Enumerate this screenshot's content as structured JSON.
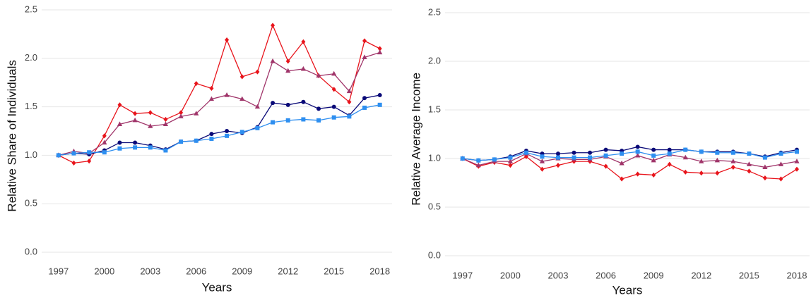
{
  "chart_data": [
    {
      "type": "line",
      "x_label": "Years",
      "y_label": "Relative Share of Individuals",
      "x": [
        1997,
        1998,
        1999,
        2000,
        2001,
        2002,
        2003,
        2004,
        2005,
        2006,
        2007,
        2008,
        2009,
        2010,
        2011,
        2012,
        2013,
        2014,
        2015,
        2016,
        2017,
        2018
      ],
      "xlim": [
        1995.9,
        2018.8
      ],
      "xticks": [
        1997,
        2000,
        2003,
        2006,
        2009,
        2012,
        2015,
        2018
      ],
      "ylim": [
        -0.15,
        2.55
      ],
      "yticks": [
        {
          "value": 0,
          "label": "0.0"
        },
        0.5,
        {
          "value": 1,
          "label": "1.0"
        },
        1.5,
        {
          "value": 2,
          "label": "2.0"
        },
        2.5
      ],
      "grid": true,
      "series": [
        {
          "color": "#e8141b",
          "marker": "diamond",
          "values": [
            1.0,
            0.92,
            0.94,
            1.2,
            1.52,
            1.43,
            1.44,
            1.37,
            1.44,
            1.74,
            1.69,
            2.19,
            1.81,
            1.86,
            2.34,
            1.97,
            2.17,
            1.82,
            1.68,
            1.55,
            2.18,
            2.1
          ]
        },
        {
          "color": "#a0356a",
          "marker": "triangle",
          "values": [
            1.0,
            1.04,
            1.02,
            1.13,
            1.32,
            1.36,
            1.3,
            1.32,
            1.4,
            1.43,
            1.58,
            1.62,
            1.58,
            1.5,
            1.97,
            1.87,
            1.89,
            1.82,
            1.84,
            1.66,
            2.01,
            2.06
          ]
        },
        {
          "color": "#0a0a78",
          "marker": "circle",
          "values": [
            1.0,
            1.02,
            1.01,
            1.05,
            1.13,
            1.13,
            1.1,
            1.06,
            1.14,
            1.15,
            1.22,
            1.25,
            1.23,
            1.29,
            1.54,
            1.52,
            1.55,
            1.48,
            1.5,
            1.41,
            1.59,
            1.62
          ]
        },
        {
          "color": "#2e8ff0",
          "marker": "square",
          "values": [
            1.0,
            1.02,
            1.03,
            1.03,
            1.07,
            1.08,
            1.08,
            1.05,
            1.14,
            1.15,
            1.17,
            1.2,
            1.24,
            1.28,
            1.34,
            1.36,
            1.37,
            1.36,
            1.39,
            1.4,
            1.49,
            1.52
          ]
        }
      ]
    },
    {
      "type": "line",
      "x_label": "Years",
      "y_label": "Relative Average Income",
      "x": [
        1997,
        1998,
        1999,
        2000,
        2001,
        2002,
        2003,
        2004,
        2005,
        2006,
        2007,
        2008,
        2009,
        2010,
        2011,
        2012,
        2013,
        2014,
        2015,
        2016,
        2017,
        2018
      ],
      "xlim": [
        1995.9,
        2018.8
      ],
      "xticks": [
        1997,
        2000,
        2003,
        2006,
        2009,
        2012,
        2015,
        2018
      ],
      "ylim": [
        -0.15,
        2.55
      ],
      "yticks": [
        {
          "value": 0,
          "label": "0.0"
        },
        0.5,
        {
          "value": 1,
          "label": "1.0"
        },
        1.5,
        {
          "value": 2,
          "label": "2.0"
        },
        2.5
      ],
      "grid": true,
      "series": [
        {
          "color": "#e8141b",
          "marker": "diamond",
          "values": [
            1.0,
            0.92,
            0.96,
            0.93,
            1.02,
            0.89,
            0.93,
            0.97,
            0.97,
            0.92,
            0.79,
            0.84,
            0.83,
            0.94,
            0.86,
            0.85,
            0.85,
            0.91,
            0.87,
            0.8,
            0.79,
            0.89
          ]
        },
        {
          "color": "#a0356a",
          "marker": "triangle",
          "values": [
            1.0,
            0.93,
            0.97,
            0.97,
            1.05,
            0.97,
            1.0,
            0.99,
            0.99,
            1.02,
            0.95,
            1.03,
            0.98,
            1.04,
            1.01,
            0.97,
            0.98,
            0.97,
            0.94,
            0.91,
            0.94,
            0.97
          ]
        },
        {
          "color": "#0a0a78",
          "marker": "circle",
          "values": [
            1.0,
            0.98,
            0.99,
            1.02,
            1.08,
            1.05,
            1.05,
            1.06,
            1.06,
            1.09,
            1.08,
            1.12,
            1.09,
            1.09,
            1.09,
            1.07,
            1.07,
            1.07,
            1.05,
            1.02,
            1.06,
            1.09
          ]
        },
        {
          "color": "#2e8ff0",
          "marker": "square",
          "values": [
            1.0,
            0.98,
            0.99,
            1.01,
            1.06,
            1.02,
            1.01,
            1.01,
            1.01,
            1.03,
            1.05,
            1.07,
            1.03,
            1.05,
            1.09,
            1.07,
            1.06,
            1.06,
            1.05,
            1.01,
            1.05,
            1.07
          ]
        }
      ]
    }
  ]
}
